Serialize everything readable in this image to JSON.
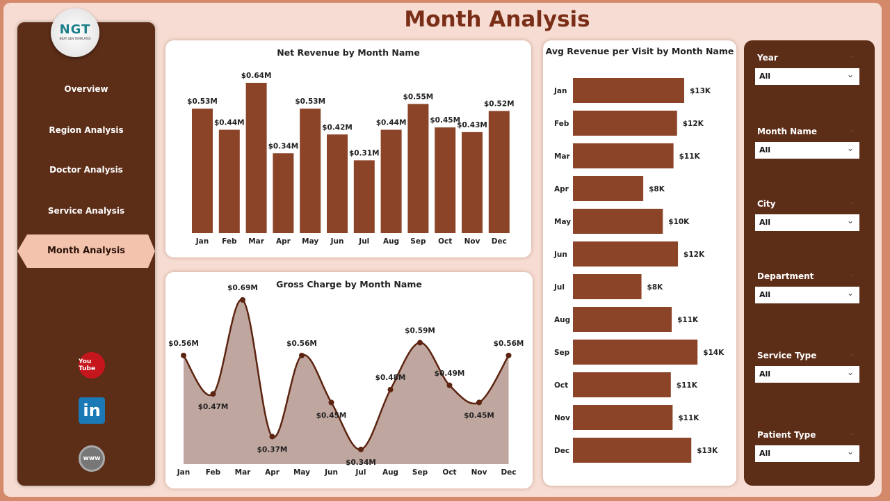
{
  "page_title": "Month Analysis",
  "logo": {
    "text": "NGT",
    "subtitle": "NEXT GEN TEMPLATES"
  },
  "nav": [
    {
      "label": "Overview"
    },
    {
      "label": "Region Analysis"
    },
    {
      "label": "Doctor Analysis"
    },
    {
      "label": "Service Analysis"
    },
    {
      "label": "Month Analysis",
      "active": true
    }
  ],
  "social": [
    {
      "icon": "youtube-icon",
      "label": "You Tube"
    },
    {
      "icon": "linkedin-icon",
      "label": "in"
    },
    {
      "icon": "globe-icon",
      "label": "www"
    }
  ],
  "filters": [
    {
      "label": "Year",
      "value": "All"
    },
    {
      "label": "Month Name",
      "value": "All"
    },
    {
      "label": "City",
      "value": "All"
    },
    {
      "label": "Department",
      "value": "All"
    },
    {
      "label": "Service Type",
      "value": "All"
    },
    {
      "label": "Patient Type",
      "value": "All"
    }
  ],
  "colors": {
    "bar": "#8b4428",
    "sidebar": "#5c2d17",
    "area": "#bfa69f",
    "line": "#5c2411",
    "title": "#7a2e17"
  },
  "chart_data": [
    {
      "type": "bar",
      "title": "Net Revenue by Month Name",
      "categories": [
        "Jan",
        "Feb",
        "Mar",
        "Apr",
        "May",
        "Jun",
        "Jul",
        "Aug",
        "Sep",
        "Oct",
        "Nov",
        "Dec"
      ],
      "values": [
        0.53,
        0.44,
        0.64,
        0.34,
        0.53,
        0.42,
        0.31,
        0.44,
        0.55,
        0.45,
        0.43,
        0.52
      ],
      "labels": [
        "$0.53M",
        "$0.44M",
        "$0.64M",
        "$0.34M",
        "$0.53M",
        "$0.42M",
        "$0.31M",
        "$0.44M",
        "$0.55M",
        "$0.45M",
        "$0.43M",
        "$0.52M"
      ],
      "unit": "$M"
    },
    {
      "type": "area",
      "title": "Gross Charge by Month Name",
      "categories": [
        "Jan",
        "Feb",
        "Mar",
        "Apr",
        "May",
        "Jun",
        "Jul",
        "Aug",
        "Sep",
        "Oct",
        "Nov",
        "Dec"
      ],
      "values": [
        0.56,
        0.47,
        0.69,
        0.37,
        0.56,
        0.45,
        0.34,
        0.48,
        0.59,
        0.49,
        0.45,
        0.56
      ],
      "labels": [
        "$0.56M",
        "$0.47M",
        "$0.69M",
        "$0.37M",
        "$0.56M",
        "$0.45M",
        "$0.34M",
        "$0.48M",
        "$0.59M",
        "$0.49M",
        "$0.45M",
        "$0.56M"
      ],
      "unit": "$M"
    },
    {
      "type": "bar",
      "orientation": "horizontal",
      "title": "Avg Revenue per Visit by Month Name",
      "categories": [
        "Jan",
        "Feb",
        "Mar",
        "Apr",
        "May",
        "Jun",
        "Jul",
        "Aug",
        "Sep",
        "Oct",
        "Nov",
        "Dec"
      ],
      "values": [
        12.5,
        11.7,
        11.3,
        7.9,
        10.1,
        11.8,
        7.7,
        11.1,
        14.0,
        11.0,
        11.2,
        13.3
      ],
      "labels": [
        "$13K",
        "$12K",
        "$11K",
        "$8K",
        "$10K",
        "$12K",
        "$8K",
        "$11K",
        "$14K",
        "$11K",
        "$11K",
        "$13K"
      ],
      "unit": "$K"
    }
  ]
}
